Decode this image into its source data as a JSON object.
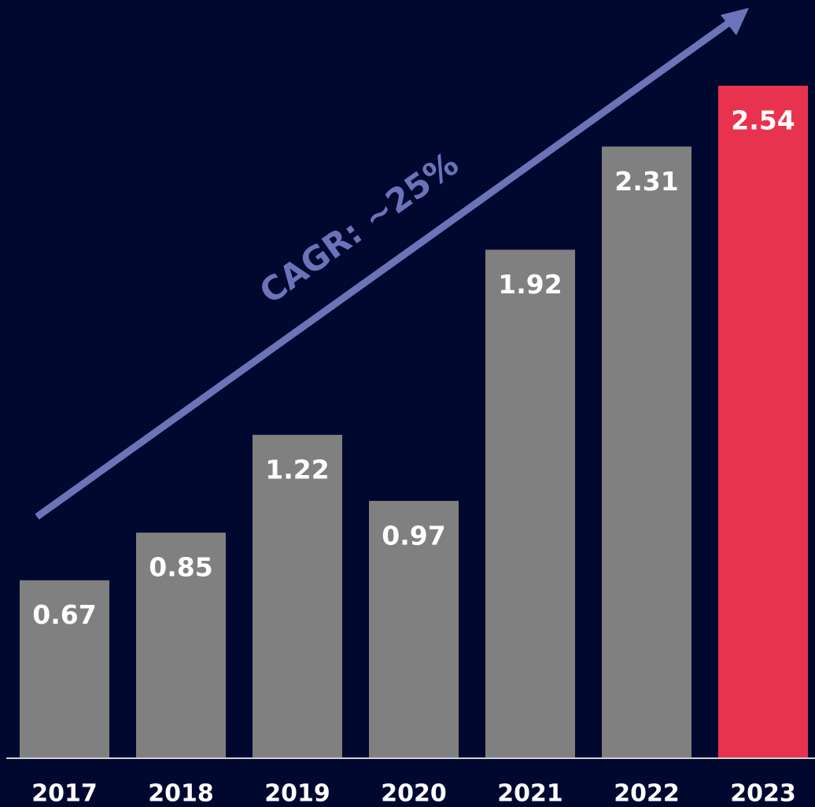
{
  "chart_data": {
    "type": "bar",
    "categories": [
      "2017",
      "2018",
      "2019",
      "2020",
      "2021",
      "2022",
      "2023"
    ],
    "values": [
      0.67,
      0.85,
      1.22,
      0.97,
      1.92,
      2.31,
      2.54
    ],
    "colors": [
      "#808080",
      "#808080",
      "#808080",
      "#808080",
      "#808080",
      "#808080",
      "#e8334f"
    ],
    "annotation": "CAGR: ~25%"
  }
}
